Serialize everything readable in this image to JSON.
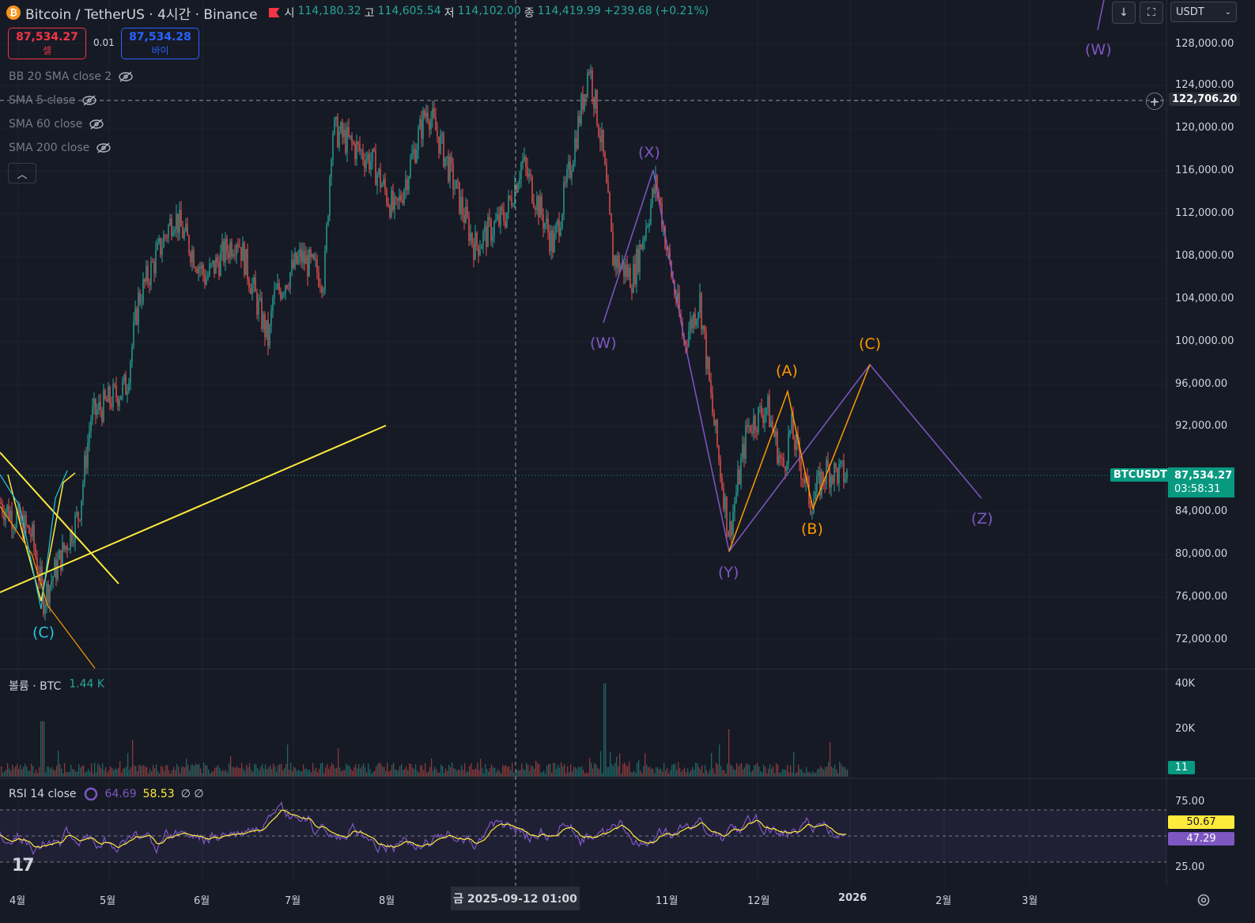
{
  "header": {
    "symbol_title": "Bitcoin / TetherUS · 4시간 · Binance",
    "ohlc": [
      {
        "key": "시",
        "value": "114,180.32"
      },
      {
        "key": "고",
        "value": "114,605.54"
      },
      {
        "key": "저",
        "value": "114,102.00"
      },
      {
        "key": "종",
        "value": "114,419.99"
      }
    ],
    "change": "+239.68 (+0.21%)"
  },
  "trade": {
    "sell_price": "87,534.27",
    "sell_label": "셀",
    "spread": "0.01",
    "buy_price": "87,534.28",
    "buy_label": "바이"
  },
  "indicators": [
    {
      "label": "BB 20 SMA close 2"
    },
    {
      "label": "SMA 5 close"
    },
    {
      "label": "SMA 60 close"
    },
    {
      "label": "SMA 200 close"
    }
  ],
  "toolbar": {
    "download_icon": "arrow-down-icon",
    "fullscreen_icon": "fullscreen-icon",
    "currency": "USDT"
  },
  "price_axis": {
    "labels": [
      "128,000.00",
      "124,000.00",
      "120,000.00",
      "116,000.00",
      "112,000.00",
      "108,000.00",
      "104,000.00",
      "100,000.00",
      "96,000.00",
      "92,000.00",
      "84,000.00",
      "80,000.00",
      "76,000.00",
      "72,000.00"
    ],
    "crosshair_price": "122,706.20",
    "symbol_tag": "BTCUSDT",
    "last_price": "87,534.27",
    "countdown": "03:58:31"
  },
  "time_axis": {
    "labels": [
      "4월",
      "5월",
      "6월",
      "7월",
      "8월",
      "11월",
      "12월",
      "2026",
      "2월",
      "3월"
    ],
    "crosshair_date": "금 2025-09-12   01:00"
  },
  "waves": {
    "W": "(W)",
    "X": "(X)",
    "Y": "(Y)",
    "Z": "(Z)",
    "A": "(A)",
    "B": "(B)",
    "C": "(C)",
    "top_W": "(W)",
    "left_C": "(C)"
  },
  "volume": {
    "title": "볼륨 · BTC",
    "value": "1.44 K",
    "axis": [
      "40K",
      "20K"
    ],
    "last": "11"
  },
  "rsi": {
    "title": "RSI 14 close",
    "rsi_value": "64.69",
    "ma_value": "58.53",
    "extra": "∅ ∅",
    "axis": [
      "75.00",
      "25.00"
    ],
    "yellow_tag": "50.67",
    "purple_tag": "47.29"
  },
  "colors": {
    "bg": "#161a25",
    "up": "#26a69a",
    "down": "#ef5350",
    "wave_purple": "#7e57c2",
    "wave_orange": "#ff9800",
    "trend_yellow": "#ffeb3b"
  },
  "chart_data": {
    "type": "line",
    "title": "Bitcoin / TetherUS · 4시간 · Binance",
    "ylim": [
      70000,
      130000
    ],
    "approx_closes": [
      {
        "x": "4월",
        "y": 82000
      },
      {
        "x": "5월",
        "y": 95000
      },
      {
        "x": "6월",
        "y": 105000
      },
      {
        "x": "7월",
        "y": 108000
      },
      {
        "x": "8월",
        "y": 116000
      },
      {
        "x": "2025-09-12",
        "y": 114420
      },
      {
        "x": "10월",
        "y": 124000
      },
      {
        "x": "11월",
        "y": 107000
      },
      {
        "x": "12월",
        "y": 87000
      },
      {
        "x": "2026",
        "y": 87534
      }
    ]
  }
}
